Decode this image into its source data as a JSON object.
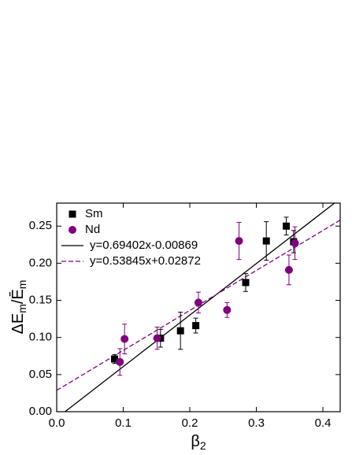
{
  "chart_data": {
    "type": "scatter",
    "xlabel_parts": [
      "β",
      "2"
    ],
    "ylabel_parts": [
      "ΔE",
      "m",
      "/Ē",
      "m"
    ],
    "xlim": [
      0,
      0.426
    ],
    "ylim": [
      0,
      0.281
    ],
    "xticks": [
      {
        "value": 0,
        "label": "0.0"
      },
      {
        "value": 0.1,
        "label": "0.1"
      },
      {
        "value": 0.2,
        "label": "0.2"
      },
      {
        "value": 0.3,
        "label": "0.3"
      },
      {
        "value": 0.4,
        "label": "0.4"
      }
    ],
    "yticks": [
      {
        "value": 0,
        "label": "0.00"
      },
      {
        "value": 0.05,
        "label": "0.05"
      },
      {
        "value": 0.1,
        "label": "0.10"
      },
      {
        "value": 0.15,
        "label": "0.15"
      },
      {
        "value": 0.2,
        "label": "0.20"
      },
      {
        "value": 0.25,
        "label": "0.25"
      }
    ],
    "legend": "top-left",
    "series": [
      {
        "name": "Sm",
        "color": "#000000",
        "marker": "square",
        "x": [
          0.087,
          0.156,
          0.186,
          0.209,
          0.284,
          0.315,
          0.345,
          0.356
        ],
        "values": [
          0.071,
          0.099,
          0.109,
          0.116,
          0.174,
          0.23,
          0.25,
          0.229
        ],
        "errors": [
          0.006,
          0.012,
          0.025,
          0.01,
          0.012,
          0.026,
          0.012,
          0.015
        ]
      },
      {
        "name": "Nd",
        "color": "#800080",
        "marker": "circle",
        "x": [
          0.095,
          0.102,
          0.151,
          0.213,
          0.256,
          0.274,
          0.349,
          0.358
        ],
        "values": [
          0.067,
          0.098,
          0.099,
          0.147,
          0.137,
          0.23,
          0.191,
          0.227
        ],
        "errors": [
          0.018,
          0.02,
          0.015,
          0.014,
          0.01,
          0.025,
          0.02,
          0.022
        ]
      }
    ],
    "fits": [
      {
        "name": "y=0.69402x-0.00869",
        "slope": 0.69402,
        "intercept": -0.00869,
        "color": "#000000",
        "dash": false
      },
      {
        "name": "y=0.53845x+0.02872",
        "slope": 0.53845,
        "intercept": 0.02872,
        "color": "#800080",
        "dash": true
      }
    ]
  }
}
